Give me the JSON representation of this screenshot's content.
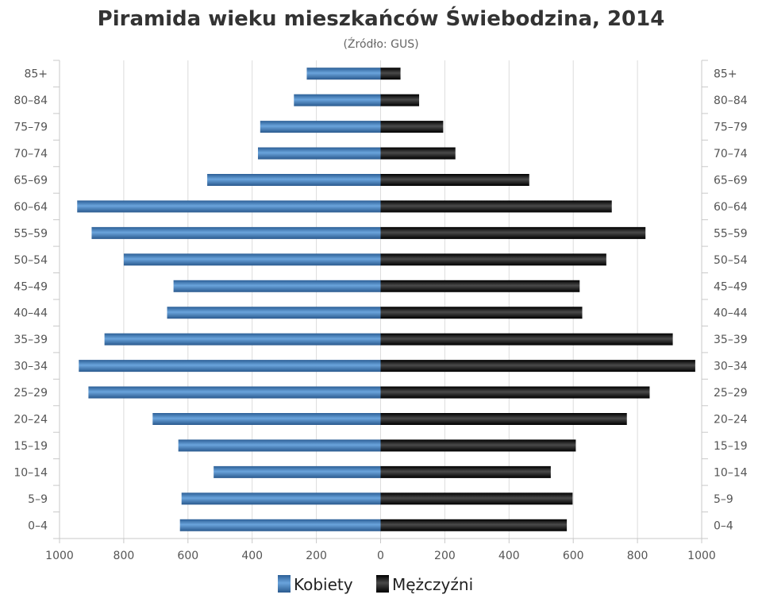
{
  "chart_data": {
    "type": "bar",
    "orientation": "horizontal",
    "title": "Piramida wieku mieszkańców Świebodzina, 2014",
    "subtitle": "(Źródło: GUS)",
    "categories": [
      "0–4",
      "5–9",
      "10–14",
      "15–19",
      "20–24",
      "25–29",
      "30–34",
      "35–39",
      "40–44",
      "45–49",
      "50–54",
      "55–59",
      "60–64",
      "65–69",
      "70–74",
      "75–79",
      "80–84",
      "85+"
    ],
    "series": [
      {
        "name": "Kobiety",
        "side": "left",
        "color": "#3a78b8",
        "values": [
          625,
          620,
          520,
          630,
          710,
          910,
          940,
          860,
          665,
          645,
          800,
          900,
          945,
          540,
          382,
          375,
          270,
          230
        ]
      },
      {
        "name": "Mężczyźni",
        "side": "right",
        "color": "#1a1a1a",
        "values": [
          580,
          598,
          530,
          608,
          767,
          838,
          980,
          910,
          628,
          620,
          703,
          825,
          720,
          463,
          233,
          195,
          120,
          62
        ]
      }
    ],
    "x_ticks": [
      "1000",
      "800",
      "600",
      "400",
      "200",
      "0",
      "200",
      "400",
      "600",
      "800",
      "1000"
    ],
    "xlim": [
      -1000,
      1000
    ],
    "grid": true,
    "legend_position": "bottom"
  }
}
